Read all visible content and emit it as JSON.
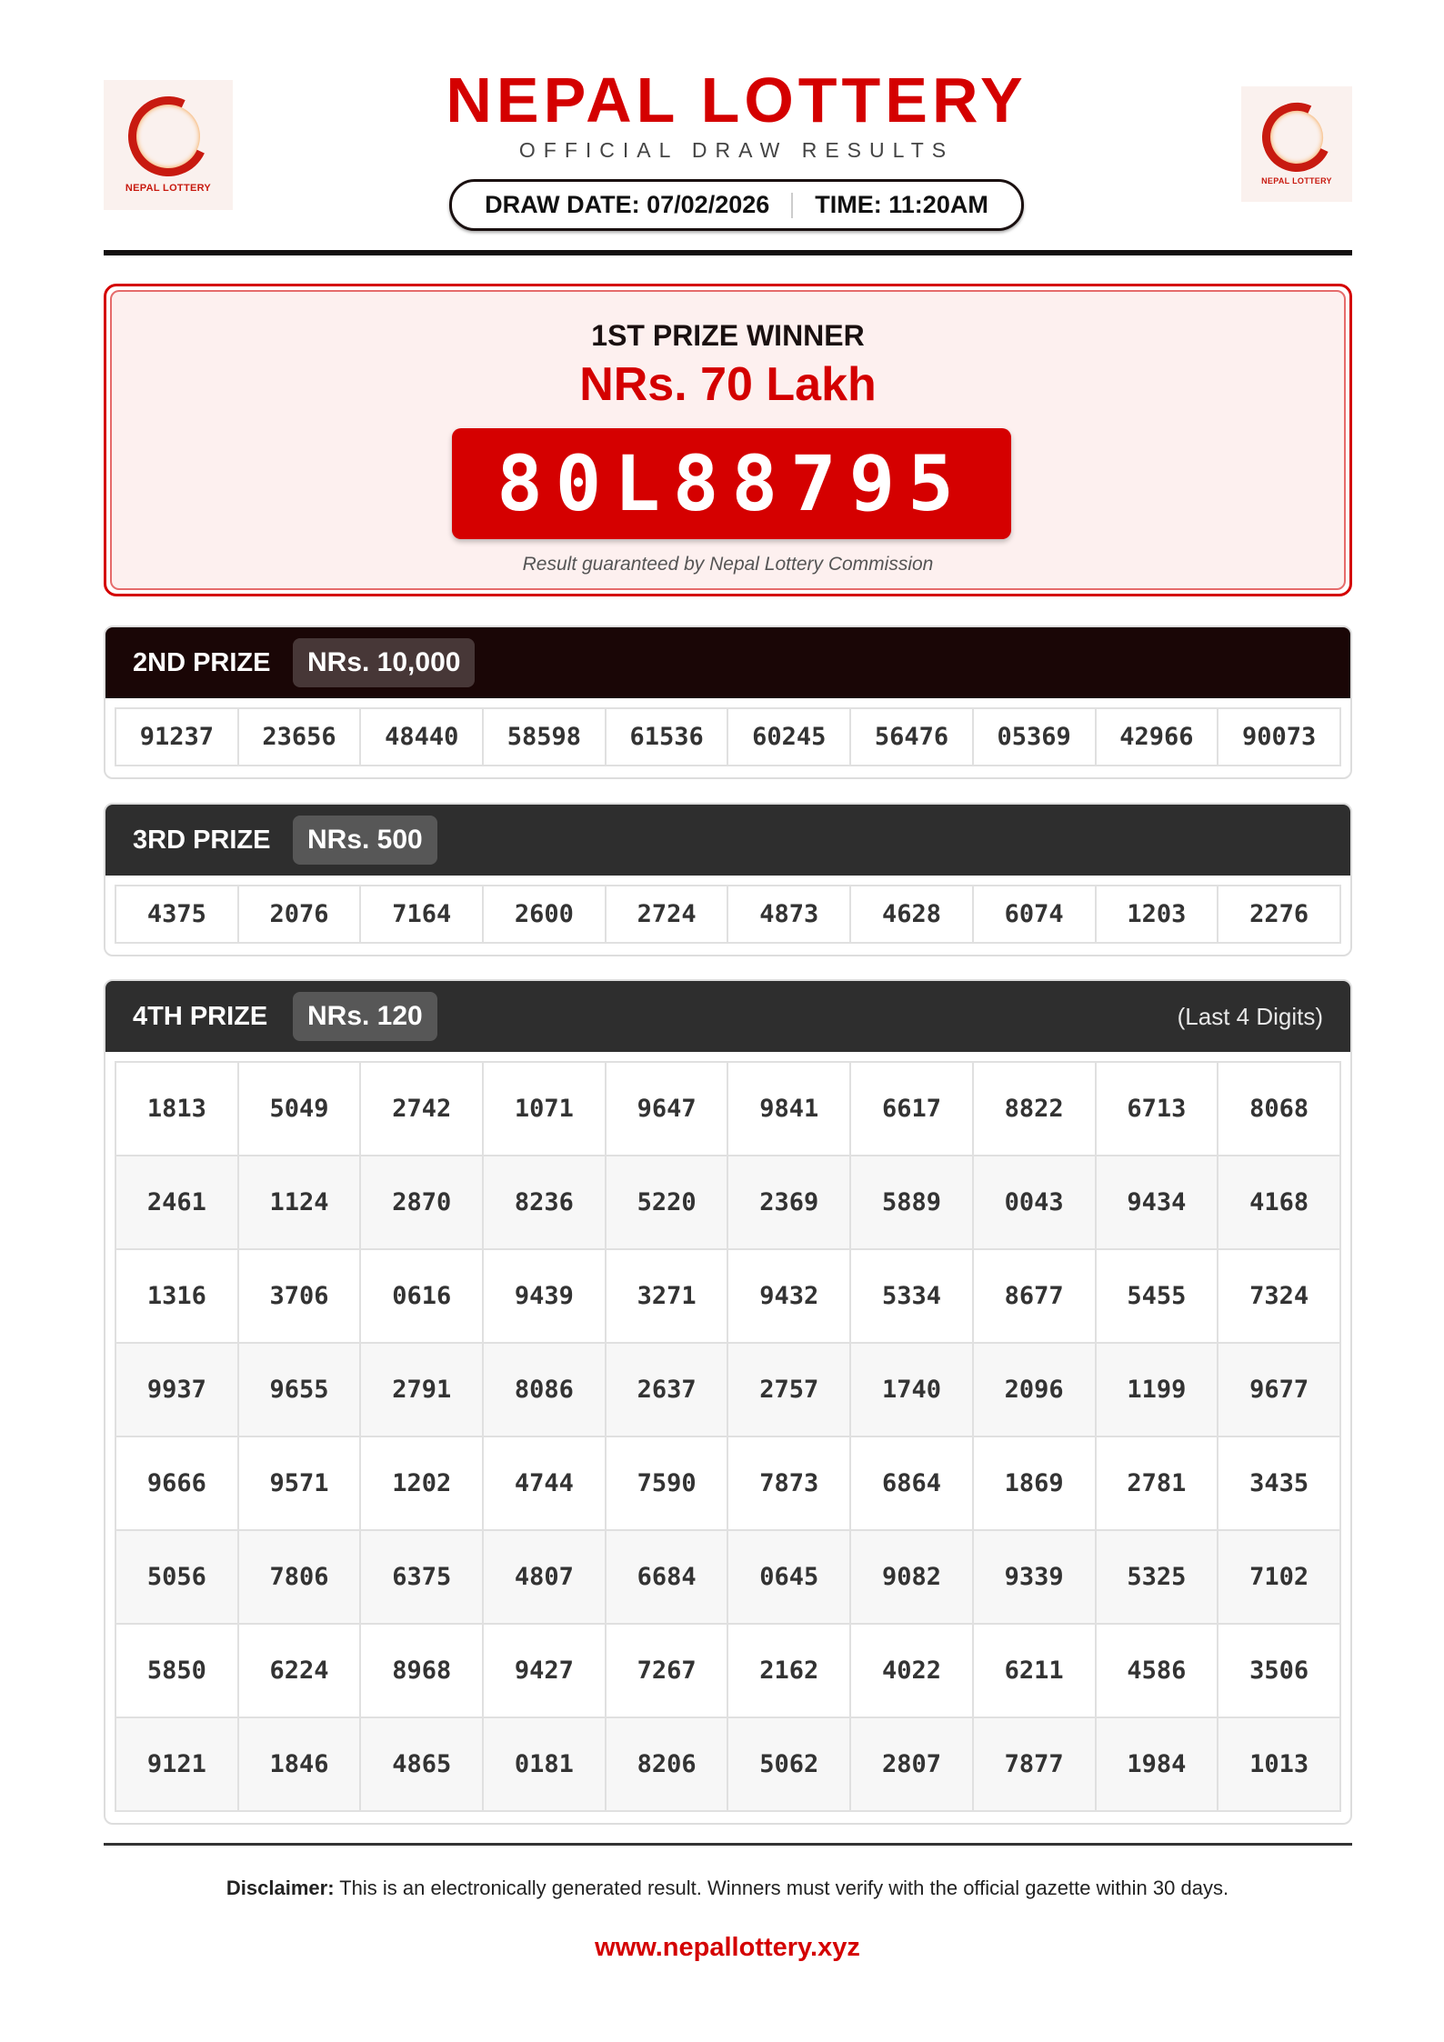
{
  "header": {
    "title": "NEPAL LOTTERY",
    "subtitle": "OFFICIAL DRAW RESULTS",
    "draw_date": "DRAW DATE: 07/02/2026",
    "time": "TIME: 11:20AM",
    "logo_text": "NEPAL LOTTERY"
  },
  "first_prize": {
    "label": "1ST PRIZE WINNER",
    "amount": "NRs. 70 Lakh",
    "number": "80L88795",
    "note": "Result guaranteed by Nepal Lottery Commission"
  },
  "second_prize": {
    "label": "2ND PRIZE",
    "amount": "NRs. 10,000",
    "numbers": [
      "91237",
      "23656",
      "48440",
      "58598",
      "61536",
      "60245",
      "56476",
      "05369",
      "42966",
      "90073"
    ]
  },
  "third_prize": {
    "label": "3RD PRIZE",
    "amount": "NRs. 500",
    "numbers": [
      "4375",
      "2076",
      "7164",
      "2600",
      "2724",
      "4873",
      "4628",
      "6074",
      "1203",
      "2276"
    ]
  },
  "fourth_prize": {
    "label": "4TH PRIZE",
    "amount": "NRs. 120",
    "note": "(Last 4 Digits)",
    "rows": [
      [
        "1813",
        "5049",
        "2742",
        "1071",
        "9647",
        "9841",
        "6617",
        "8822",
        "6713",
        "8068"
      ],
      [
        "2461",
        "1124",
        "2870",
        "8236",
        "5220",
        "2369",
        "5889",
        "0043",
        "9434",
        "4168"
      ],
      [
        "1316",
        "3706",
        "0616",
        "9439",
        "3271",
        "9432",
        "5334",
        "8677",
        "5455",
        "7324"
      ],
      [
        "9937",
        "9655",
        "2791",
        "8086",
        "2637",
        "2757",
        "1740",
        "2096",
        "1199",
        "9677"
      ],
      [
        "9666",
        "9571",
        "1202",
        "4744",
        "7590",
        "7873",
        "6864",
        "1869",
        "2781",
        "3435"
      ],
      [
        "5056",
        "7806",
        "6375",
        "4807",
        "6684",
        "0645",
        "9082",
        "9339",
        "5325",
        "7102"
      ],
      [
        "5850",
        "6224",
        "8968",
        "9427",
        "7267",
        "2162",
        "4022",
        "6211",
        "4586",
        "3506"
      ],
      [
        "9121",
        "1846",
        "4865",
        "0181",
        "8206",
        "5062",
        "2807",
        "7877",
        "1984",
        "1013"
      ]
    ]
  },
  "footer": {
    "disclaimer_label": "Disclaimer:",
    "disclaimer_text": " This is an electronically generated result. Winners must verify with the official gazette within 30 days.",
    "url": "www.nepallottery.xyz"
  },
  "colors": {
    "brand_red": "#d40000",
    "second_header": "#1a0606",
    "third_header": "#2e2e2e"
  }
}
